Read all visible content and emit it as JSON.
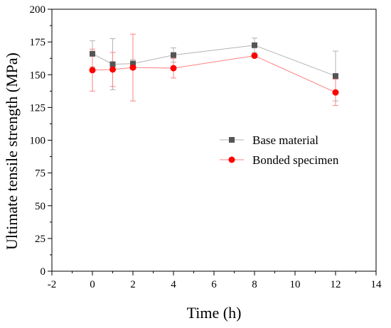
{
  "chart_data": {
    "type": "scatter",
    "title": "",
    "xlabel": "Time (h)",
    "ylabel": "Ultimate tensile strength (MPa)",
    "xlim": [
      -2,
      14
    ],
    "ylim": [
      0,
      200
    ],
    "xticks": [
      -2,
      0,
      2,
      4,
      6,
      8,
      10,
      12,
      14
    ],
    "yticks": [
      0,
      25,
      50,
      75,
      100,
      125,
      150,
      175,
      200
    ],
    "grid": false,
    "legend_position": "middle-right",
    "series": [
      {
        "name": "Base material",
        "color": "#555555",
        "line_color": "#b3b3b3",
        "marker": "square",
        "x": [
          0,
          1,
          2,
          4,
          8,
          12
        ],
        "y": [
          166,
          158,
          158.5,
          165,
          172.5,
          149
        ],
        "error": [
          10,
          19.5,
          3,
          5.5,
          5.5,
          19
        ]
      },
      {
        "name": "Bonded specimen",
        "color": "#ff0000",
        "line_color": "#ff8080",
        "marker": "circle",
        "x": [
          0,
          1,
          2,
          4,
          8,
          12
        ],
        "y": [
          153.5,
          154,
          155.5,
          155,
          164.5,
          136.5
        ],
        "error": [
          16,
          13,
          25.5,
          7.5,
          1.5,
          10
        ]
      }
    ]
  }
}
